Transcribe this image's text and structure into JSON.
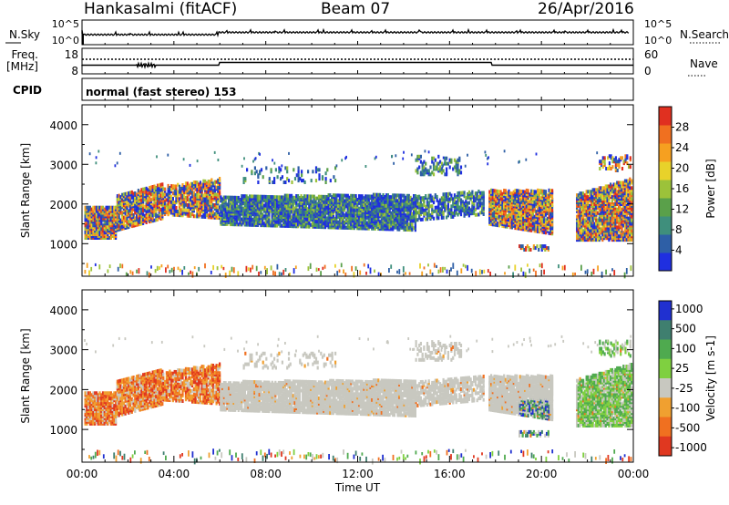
{
  "header": {
    "station": "Hankasalmi (fitACF)",
    "beam": "Beam 07",
    "date": "26/Apr/2016"
  },
  "top_panels": {
    "noise": {
      "left_label": "N.Sky",
      "right_label": "N.Search",
      "left_ticks": [
        "10^5",
        "10^0"
      ],
      "right_ticks": [
        "10^5",
        "10^0"
      ]
    },
    "freq": {
      "left_label_1": "Freq.",
      "left_label_2": "[MHz]",
      "right_label": "Nave",
      "left_ticks": [
        "18",
        "8"
      ],
      "right_ticks": [
        "60",
        "0"
      ]
    },
    "cpid": {
      "label": "CPID",
      "text": "normal (fast stereo) 153"
    }
  },
  "colors": {
    "power_scale": [
      "#1f2fe0",
      "#2e5fa6",
      "#3f8f7c",
      "#5aa04a",
      "#9cc23a",
      "#e8d22a",
      "#f6a020",
      "#f07020",
      "#e03020"
    ],
    "velocity_scale": [
      "#2030d0",
      "#3f7f6f",
      "#4faa4f",
      "#7fd040",
      "#c8c8c0",
      "#f0a030",
      "#f07020",
      "#e03820"
    ]
  },
  "chart_data": [
    {
      "type": "heatmap",
      "title": "Power",
      "ylabel": "Slant Range [km]",
      "ylim": [
        180,
        4500
      ],
      "yticks": [
        "1000",
        "2000",
        "3000",
        "4000"
      ],
      "xlim": [
        "00:00",
        "24:00"
      ],
      "colorbar": {
        "label": "Power [dB]",
        "range": [
          0,
          32
        ],
        "ticks": [
          "4",
          "8",
          "12",
          "16",
          "20",
          "24",
          "28"
        ]
      },
      "description": "Backscatter power vs time (UT) and slant range"
    },
    {
      "type": "heatmap",
      "title": "Velocity",
      "ylabel": "Slant Range [km]",
      "ylim": [
        180,
        4500
      ],
      "yticks": [
        "1000",
        "2000",
        "3000",
        "4000"
      ],
      "xlabel": "Time UT",
      "xticks": [
        "00:00",
        "04:00",
        "08:00",
        "12:00",
        "16:00",
        "20:00",
        "00:00"
      ],
      "colorbar": {
        "label": "Velocity [m s-1]",
        "ticks": [
          "1000",
          "500",
          "100",
          "25",
          "-25",
          "-100",
          "-500",
          "-1000"
        ]
      },
      "description": "Line-of-sight Doppler velocity vs time (UT) and slant range"
    }
  ]
}
